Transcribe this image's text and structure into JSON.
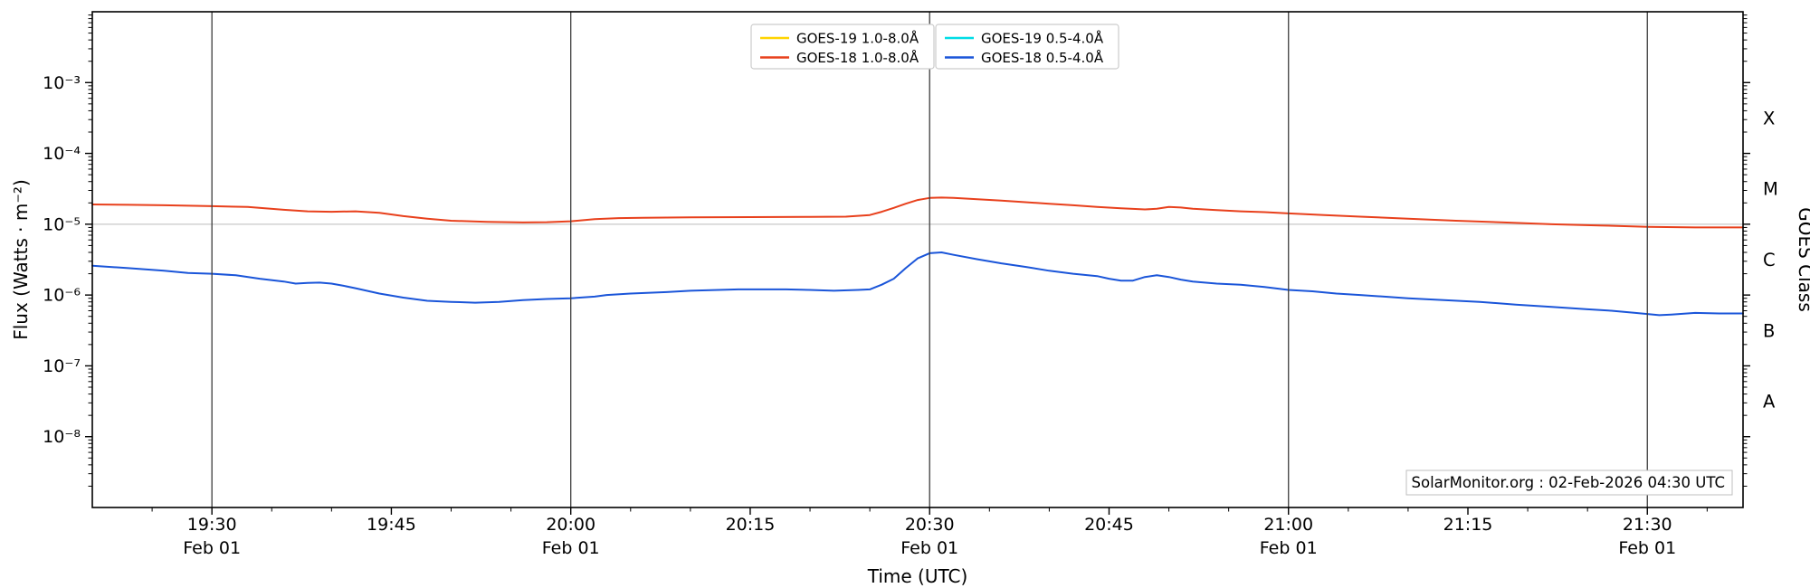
{
  "page": {
    "background": "#ffffff"
  },
  "chart_data": {
    "type": "line",
    "title": "",
    "xlabel": "Time (UTC)",
    "ylabel_left": "Flux (Watts · m⁻²)",
    "ylabel_right": "GOES Class",
    "watermark": "SolarMonitor.org : 02-Feb-2026 04:30 UTC",
    "x_encoding": "minutes after 19:20 UTC on Feb 01",
    "x_domain": [
      0,
      138
    ],
    "x_minor_step": 5,
    "x_ticks": [
      {
        "t": 10,
        "label": "19:30",
        "date": "Feb 01",
        "grid": true
      },
      {
        "t": 25,
        "label": "19:45",
        "date": "",
        "grid": false
      },
      {
        "t": 40,
        "label": "20:00",
        "date": "Feb 01",
        "grid": true
      },
      {
        "t": 55,
        "label": "20:15",
        "date": "",
        "grid": false
      },
      {
        "t": 70,
        "label": "20:30",
        "date": "Feb 01",
        "grid": true
      },
      {
        "t": 85,
        "label": "20:45",
        "date": "",
        "grid": false
      },
      {
        "t": 100,
        "label": "21:00",
        "date": "Feb 01",
        "grid": true
      },
      {
        "t": 115,
        "label": "21:15",
        "date": "",
        "grid": false
      },
      {
        "t": 130,
        "label": "21:30",
        "date": "Feb 01",
        "grid": true
      }
    ],
    "y_log_range": [
      -9,
      -2
    ],
    "y_gridline_log": -5,
    "y_ticks": [
      {
        "log": -3,
        "label": "10⁻³"
      },
      {
        "log": -4,
        "label": "10⁻⁴"
      },
      {
        "log": -5,
        "label": "10⁻⁵"
      },
      {
        "log": -6,
        "label": "10⁻⁶"
      },
      {
        "log": -7,
        "label": "10⁻⁷"
      },
      {
        "log": -8,
        "label": "10⁻⁸"
      }
    ],
    "goes_classes": [
      {
        "label": "X",
        "log_center": -3.5
      },
      {
        "label": "M",
        "log_center": -4.5
      },
      {
        "label": "C",
        "log_center": -5.5
      },
      {
        "label": "B",
        "log_center": -6.5
      },
      {
        "label": "A",
        "log_center": -7.5
      }
    ],
    "legend_groups": [
      [
        0,
        1
      ],
      [
        2,
        3
      ]
    ],
    "series": [
      {
        "name": "GOES-19 1.0-8.0Å",
        "color": "#ffd400",
        "points": []
      },
      {
        "name": "GOES-18 1.0-8.0Å",
        "color": "#e8401c",
        "points": [
          [
            0,
            1.9e-05
          ],
          [
            3,
            1.88e-05
          ],
          [
            6,
            1.85e-05
          ],
          [
            10,
            1.8e-05
          ],
          [
            13,
            1.75e-05
          ],
          [
            16,
            1.6e-05
          ],
          [
            18,
            1.52e-05
          ],
          [
            20,
            1.5e-05
          ],
          [
            22,
            1.52e-05
          ],
          [
            24,
            1.45e-05
          ],
          [
            26,
            1.3e-05
          ],
          [
            28,
            1.2e-05
          ],
          [
            30,
            1.12e-05
          ],
          [
            33,
            1.08e-05
          ],
          [
            36,
            1.06e-05
          ],
          [
            38,
            1.07e-05
          ],
          [
            40,
            1.1e-05
          ],
          [
            42,
            1.18e-05
          ],
          [
            44,
            1.22e-05
          ],
          [
            46,
            1.23e-05
          ],
          [
            50,
            1.25e-05
          ],
          [
            55,
            1.26e-05
          ],
          [
            60,
            1.27e-05
          ],
          [
            63,
            1.28e-05
          ],
          [
            65,
            1.35e-05
          ],
          [
            66,
            1.5e-05
          ],
          [
            67,
            1.7e-05
          ],
          [
            68,
            1.95e-05
          ],
          [
            69,
            2.2e-05
          ],
          [
            70,
            2.35e-05
          ],
          [
            71,
            2.38e-05
          ],
          [
            72,
            2.35e-05
          ],
          [
            74,
            2.25e-05
          ],
          [
            76,
            2.15e-05
          ],
          [
            78,
            2.05e-05
          ],
          [
            80,
            1.95e-05
          ],
          [
            82,
            1.85e-05
          ],
          [
            84,
            1.75e-05
          ],
          [
            86,
            1.68e-05
          ],
          [
            88,
            1.62e-05
          ],
          [
            89,
            1.65e-05
          ],
          [
            90,
            1.75e-05
          ],
          [
            91,
            1.72e-05
          ],
          [
            92,
            1.65e-05
          ],
          [
            94,
            1.58e-05
          ],
          [
            96,
            1.52e-05
          ],
          [
            98,
            1.48e-05
          ],
          [
            100,
            1.42e-05
          ],
          [
            103,
            1.35e-05
          ],
          [
            106,
            1.28e-05
          ],
          [
            110,
            1.2e-05
          ],
          [
            114,
            1.12e-05
          ],
          [
            118,
            1.06e-05
          ],
          [
            122,
            1e-05
          ],
          [
            126,
            9.6e-06
          ],
          [
            130,
            9.2e-06
          ],
          [
            134,
            9e-06
          ],
          [
            138,
            9e-06
          ]
        ]
      },
      {
        "name": "GOES-19 0.5-4.0Å",
        "color": "#00dde6",
        "points": []
      },
      {
        "name": "GOES-18 0.5-4.0Å",
        "color": "#1a55d9",
        "points": [
          [
            0,
            2.6e-06
          ],
          [
            3,
            2.4e-06
          ],
          [
            6,
            2.2e-06
          ],
          [
            8,
            2.05e-06
          ],
          [
            10,
            2e-06
          ],
          [
            12,
            1.9e-06
          ],
          [
            14,
            1.7e-06
          ],
          [
            16,
            1.55e-06
          ],
          [
            17,
            1.45e-06
          ],
          [
            18,
            1.48e-06
          ],
          [
            19,
            1.5e-06
          ],
          [
            20,
            1.45e-06
          ],
          [
            21,
            1.35e-06
          ],
          [
            22,
            1.25e-06
          ],
          [
            24,
            1.05e-06
          ],
          [
            26,
            9.2e-07
          ],
          [
            28,
            8.3e-07
          ],
          [
            30,
            8e-07
          ],
          [
            32,
            7.8e-07
          ],
          [
            34,
            8e-07
          ],
          [
            36,
            8.5e-07
          ],
          [
            38,
            8.8e-07
          ],
          [
            40,
            9e-07
          ],
          [
            42,
            9.5e-07
          ],
          [
            43,
            1e-06
          ],
          [
            45,
            1.05e-06
          ],
          [
            48,
            1.1e-06
          ],
          [
            50,
            1.15e-06
          ],
          [
            54,
            1.2e-06
          ],
          [
            58,
            1.2e-06
          ],
          [
            60,
            1.18e-06
          ],
          [
            62,
            1.15e-06
          ],
          [
            64,
            1.18e-06
          ],
          [
            65,
            1.2e-06
          ],
          [
            66,
            1.4e-06
          ],
          [
            67,
            1.7e-06
          ],
          [
            68,
            2.4e-06
          ],
          [
            69,
            3.3e-06
          ],
          [
            70,
            3.9e-06
          ],
          [
            71,
            4e-06
          ],
          [
            72,
            3.7e-06
          ],
          [
            74,
            3.2e-06
          ],
          [
            76,
            2.8e-06
          ],
          [
            78,
            2.5e-06
          ],
          [
            80,
            2.2e-06
          ],
          [
            82,
            2e-06
          ],
          [
            84,
            1.85e-06
          ],
          [
            85,
            1.7e-06
          ],
          [
            86,
            1.6e-06
          ],
          [
            87,
            1.6e-06
          ],
          [
            88,
            1.8e-06
          ],
          [
            89,
            1.9e-06
          ],
          [
            90,
            1.8e-06
          ],
          [
            91,
            1.65e-06
          ],
          [
            92,
            1.55e-06
          ],
          [
            94,
            1.45e-06
          ],
          [
            96,
            1.4e-06
          ],
          [
            98,
            1.3e-06
          ],
          [
            100,
            1.18e-06
          ],
          [
            102,
            1.13e-06
          ],
          [
            104,
            1.05e-06
          ],
          [
            106,
            1e-06
          ],
          [
            108,
            9.5e-07
          ],
          [
            110,
            9e-07
          ],
          [
            113,
            8.5e-07
          ],
          [
            116,
            8e-07
          ],
          [
            119,
            7.3e-07
          ],
          [
            122,
            6.8e-07
          ],
          [
            125,
            6.3e-07
          ],
          [
            127,
            6e-07
          ],
          [
            129,
            5.6e-07
          ],
          [
            130,
            5.4e-07
          ],
          [
            131,
            5.2e-07
          ],
          [
            132,
            5.3e-07
          ],
          [
            134,
            5.6e-07
          ],
          [
            136,
            5.5e-07
          ],
          [
            138,
            5.5e-07
          ]
        ]
      }
    ],
    "style": {
      "vertical_grid_color": "#3d3d3d",
      "horizontal_grid_color": "#c9c9c9",
      "frame_color": "#000000",
      "legend_border_color": "#cccccc",
      "watermark_border_color": "#bfbfbf"
    }
  }
}
